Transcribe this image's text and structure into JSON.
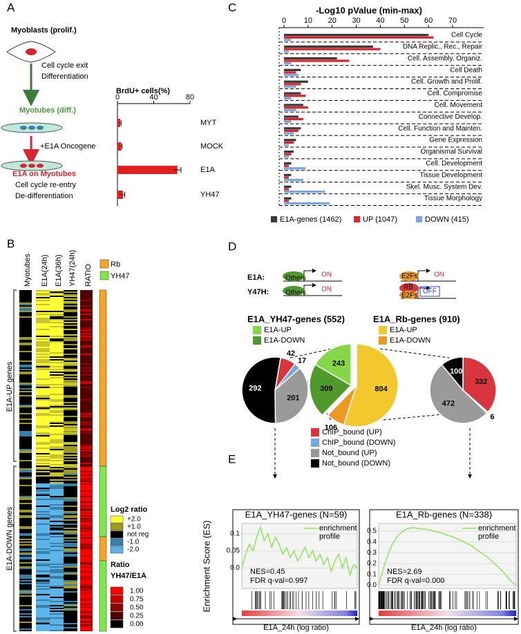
{
  "panel_labels": [
    "A",
    "B",
    "C",
    "D",
    "E"
  ],
  "panel_a": {
    "start": "Myoblasts (prolif.)",
    "step1": [
      "Cell cycle exit",
      "Differentiation"
    ],
    "myotubes": "Myotubes (diff.)",
    "step2": "+E1A Oncogene",
    "end": "E1A on Myotubes",
    "outcome": [
      "Cell cycle re-entry",
      "De-differentiation"
    ]
  },
  "panel_b": {
    "columns": [
      "Myotubes",
      "E1A(24h)",
      "E1A(36h)",
      "YH47(24h)",
      "RATIO"
    ],
    "groups": [
      "E1A-UP genes",
      "E1A-DOWN genes"
    ],
    "side_legend": [
      {
        "label": "Rb",
        "color": "#f5a623"
      },
      {
        "label": "YH47",
        "color": "#7ce84a"
      }
    ],
    "log2_legend": {
      "title": "Log2 ratio",
      "labels": [
        "+2.0",
        "+1.0",
        "not reg",
        "-1.0",
        "-2.0"
      ],
      "colors": [
        "#ffff33",
        "#9c9a22",
        "#000000",
        "#3a7fa8",
        "#5ab4e8"
      ]
    },
    "ratio_legend": {
      "title": [
        "Ratio",
        "YH47/E1A"
      ],
      "labels": [
        "1.00",
        "0.75",
        "0.50",
        "0.25",
        "0.00"
      ],
      "colors": [
        "#ff0000",
        "#c80000",
        "#900000",
        "#500000",
        "#000000"
      ]
    }
  },
  "panel_d": {
    "rows": [
      "E1A:",
      "Y47H:"
    ],
    "others": "Others",
    "on": "ON",
    "e2fs": "E2Fs",
    "rb": "RB",
    "off": "OFF"
  },
  "chart_data": [
    {
      "type": "hbar",
      "title": "BrdU+ cells(%)",
      "categories": [
        "MYT",
        "MOCK",
        "E1A",
        "YH47"
      ],
      "values": [
        3,
        4,
        66,
        6
      ],
      "errors": [
        1,
        1,
        4,
        2
      ],
      "color": "#e02020",
      "xlim": [
        0,
        80
      ],
      "xticks": [
        0,
        40,
        80
      ]
    },
    {
      "type": "grouped-hbar",
      "title": "-Log10 pValue (min-max)",
      "categories": [
        "Cell Cycle",
        "DNA Replic., Rec., Repair",
        "Cell. Assembly, Organiz.",
        "Cell Death",
        "Cell. Growth and Prolif.",
        "Cell. Compromise",
        "Cell. Movement",
        "Connective Develop.",
        "Cell. Function and Mainten.",
        "Gene Expression",
        "Organismal Survival",
        "Cell. Development",
        "Tissue Development",
        "Skel. Musc. System Dev.",
        "Tissue Morphology"
      ],
      "series": [
        {
          "name": "E1A-genes (1462)",
          "color": "#3a3a3a",
          "values": [
            60,
            37,
            22,
            7,
            10,
            7,
            8,
            6,
            7,
            5,
            4,
            3,
            3,
            3,
            3
          ]
        },
        {
          "name": "UP (1047)",
          "color": "#d9252f",
          "values": [
            62,
            40,
            27,
            5,
            7,
            9,
            10,
            8,
            6,
            4,
            3,
            2,
            2,
            2,
            2
          ]
        },
        {
          "name": "DOWN (415)",
          "color": "#79a6e0",
          "values": [
            3,
            2,
            3,
            6,
            5,
            3,
            5,
            3,
            4,
            2,
            2,
            9,
            8,
            17,
            19
          ]
        }
      ],
      "xlim": [
        0,
        70
      ],
      "xticks": [
        0,
        10,
        20,
        30,
        40,
        50,
        60,
        70
      ]
    },
    {
      "type": "pie",
      "categories": [
        "ChIP_bound (UP)",
        "ChIP_bound (DOWN)",
        "Not_bound (UP)",
        "Not_bound (DOWN)"
      ],
      "colors": [
        "#d9353f",
        "#79a6e0",
        "#9a9a9a",
        "#000000"
      ],
      "series": [
        {
          "values": [
            42,
            17,
            201,
            292
          ]
        },
        {
          "values": [
            332,
            6,
            472,
            100
          ]
        }
      ],
      "groups": [
        {
          "title": "E1A_YH47-genes (552)",
          "categories": [
            "E1A-UP",
            "E1A-DOWN"
          ],
          "values": [
            243,
            309
          ],
          "colors": [
            "#86d64a",
            "#4f9a2a"
          ]
        },
        {
          "title": "E1A_Rb-genes (910)",
          "categories": [
            "E1A-UP",
            "E1A-DOWN"
          ],
          "values": [
            804,
            106
          ],
          "colors": [
            "#f2c82e",
            "#ec9a24"
          ]
        }
      ]
    },
    {
      "type": "line",
      "title": "E1A_YH47-genes (N=59)",
      "ylabel": "Enrichment Score (ES)",
      "legend": [
        "enrichment",
        "profile"
      ],
      "xlabel": "E1A_24h (log ratio)",
      "annotations": [
        "NES=0.45",
        "FDR q-val=0.997"
      ],
      "color": "#8ee85a",
      "values": [
        0,
        0.04,
        0.07,
        0.05,
        0.09,
        0.12,
        0.08,
        0.1,
        0.06,
        0.09,
        0.07,
        0.04,
        0.06,
        0.03,
        0.05,
        0.02,
        0.04,
        0.06,
        0.03,
        0.05,
        0.02,
        0.04,
        0.01,
        0.03,
        -0.01,
        0.02,
        0.04,
        0.0,
        0.03,
        -0.02,
        0.01,
        0.0
      ],
      "ylim": [
        -0.06,
        0.13
      ],
      "yticks": [
        0.1,
        0.05,
        {
          "value": 0,
          "label": "0.0"
        }
      ]
    },
    {
      "type": "line",
      "title": "E1A_Rb-genes (N=338)",
      "legend": [
        "enrichment",
        "profile"
      ],
      "xlabel": "E1A_24h (log ratio)",
      "annotations": [
        "NES=2.69",
        "FDR q-val=0.000"
      ],
      "color": "#8ee85a",
      "values": [
        0,
        0.15,
        0.28,
        0.38,
        0.45,
        0.49,
        0.52,
        0.53,
        0.53,
        0.52,
        0.52,
        0.51,
        0.5,
        0.49,
        0.48,
        0.46,
        0.45,
        0.43,
        0.41,
        0.39,
        0.37,
        0.34,
        0.31,
        0.28,
        0.25,
        0.21,
        0.17,
        0.13,
        0.08,
        0.03,
        0.0
      ],
      "ylim": [
        -0.03,
        0.57
      ],
      "yticks": [
        {
          "value": 0.5,
          "label": "0.5"
        },
        {
          "value": 0.4,
          "label": "0.4"
        },
        {
          "value": 0.3,
          "label": "0.3"
        },
        {
          "value": 0.2,
          "label": "0.2"
        },
        {
          "value": 0.1,
          "label": "0.1"
        },
        {
          "value": 0,
          "label": "0.0"
        }
      ]
    }
  ]
}
